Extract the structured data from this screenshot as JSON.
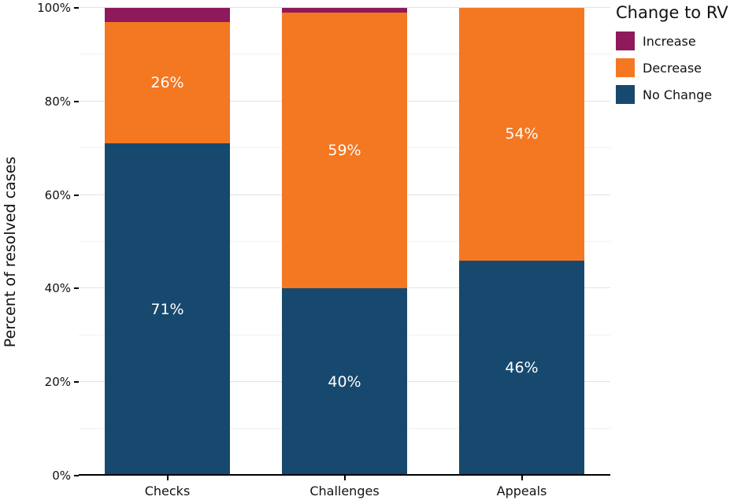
{
  "chart_data": {
    "type": "bar",
    "stacked": true,
    "title": "",
    "xlabel": "",
    "ylabel": "Percent of resolved cases",
    "ylim": [
      0,
      100
    ],
    "grid": true,
    "legend_position": "right",
    "legend_title": "Change to RV",
    "categories": [
      "Checks",
      "Challenges",
      "Appeals"
    ],
    "series": [
      {
        "name": "No Change",
        "color": "#17496e",
        "values": [
          71,
          40,
          46
        ],
        "labels": [
          "71%",
          "40%",
          "46%"
        ]
      },
      {
        "name": "Decrease",
        "color": "#f47722",
        "values": [
          26,
          59,
          54
        ],
        "labels": [
          "26%",
          "59%",
          "54%"
        ]
      },
      {
        "name": "Increase",
        "color": "#8e1a5b",
        "values": [
          3,
          1,
          0
        ],
        "labels": [
          "",
          "",
          ""
        ]
      }
    ],
    "yticks": [
      {
        "value": 0,
        "label": "0%"
      },
      {
        "value": 20,
        "label": "20%"
      },
      {
        "value": 40,
        "label": "40%"
      },
      {
        "value": 60,
        "label": "60%"
      },
      {
        "value": 80,
        "label": "80%"
      },
      {
        "value": 100,
        "label": "100%"
      }
    ],
    "yticks_minor": [
      10,
      30,
      50,
      70,
      90
    ]
  },
  "legend": {
    "title": "Change to RV",
    "items": [
      {
        "label": "Increase",
        "color": "#8e1a5b"
      },
      {
        "label": "Decrease",
        "color": "#f47722"
      },
      {
        "label": "No Change",
        "color": "#17496e"
      }
    ]
  },
  "axes": {
    "y_title": "Percent of resolved cases"
  }
}
